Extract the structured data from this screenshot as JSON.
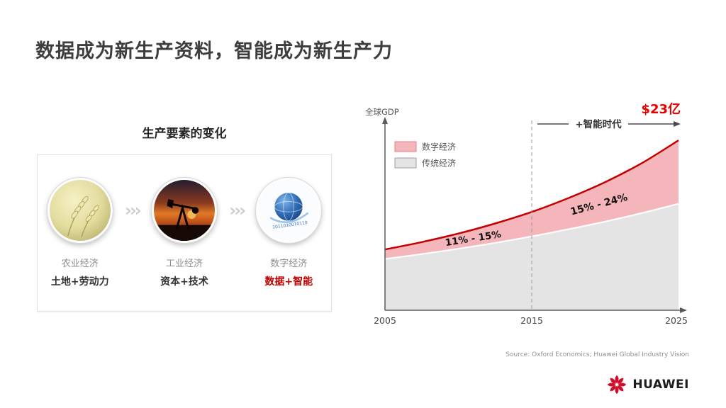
{
  "slide": {
    "title": "数据成为新生产资料，智能成为新生产力",
    "source": "Source: Oxford Economics; Huawei Global Industry Vision",
    "logo_text": "HUAWEI"
  },
  "left_panel": {
    "heading": "生产要素的变化",
    "arrow_icon": "›››",
    "stages": [
      {
        "icon": "wheat-icon",
        "era": "农业经济",
        "factors": "土地+劳动力",
        "highlight": false
      },
      {
        "icon": "oil-pump-icon",
        "era": "工业经济",
        "factors": "资本+技术",
        "highlight": false
      },
      {
        "icon": "digital-globe-icon",
        "era": "数字经济",
        "factors": "数据+智能",
        "highlight": true
      }
    ]
  },
  "chart_data": {
    "type": "area",
    "stacked": true,
    "title": "",
    "ylabel": "全球GDP",
    "xlabel": "",
    "grid": false,
    "legend_position": "top-left",
    "x_range": [
      2005,
      2025
    ],
    "x_ticks": [
      "2005",
      "2015",
      "2025"
    ],
    "x": [
      2005,
      2007.5,
      2010,
      2012.5,
      2015,
      2017.5,
      2020,
      2022.5,
      2025
    ],
    "series": [
      {
        "name": "传统经济",
        "color": "#e4e4e4",
        "values": [
          27.0,
          29.6,
          32.4,
          35.5,
          38.9,
          42.7,
          46.7,
          51.2,
          56.1
        ]
      },
      {
        "name": "数字经济",
        "color": "#f5b6bb",
        "values": [
          5.0,
          6.3,
          8.0,
          10.2,
          12.9,
          16.4,
          20.8,
          26.3,
          33.4
        ]
      }
    ],
    "legend": [
      "数字经济",
      "传统经济"
    ],
    "annotations": [
      {
        "text": "11% - 15%",
        "x": 2011
      },
      {
        "text": "15% - 24%",
        "x": 2019.5
      }
    ],
    "dashed_line_x": 2015,
    "era_label": "+智能时代",
    "value_label": "$23亿"
  }
}
